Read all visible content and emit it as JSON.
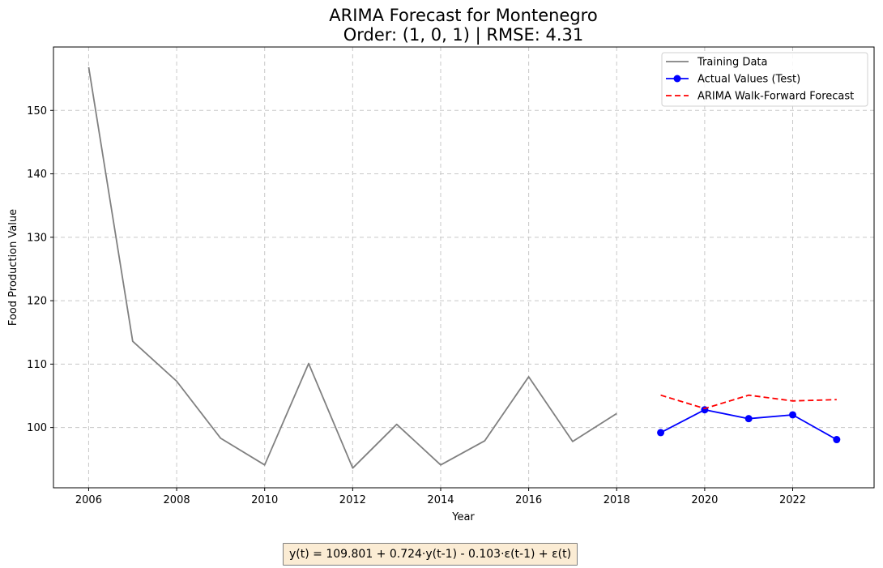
{
  "chart_data": {
    "type": "line",
    "title": "ARIMA Forecast for Montenegro",
    "subtitle": "Order: (1, 0, 1) | RMSE: 4.31",
    "xlabel": "Year",
    "ylabel": "Food Production Value",
    "xlim": [
      2005.2,
      2023.85
    ],
    "ylim": [
      90.5,
      160.0
    ],
    "xticks": [
      2006,
      2008,
      2010,
      2012,
      2014,
      2016,
      2018,
      2020,
      2022
    ],
    "yticks": [
      100,
      110,
      120,
      130,
      140,
      150
    ],
    "grid": true,
    "legend_position": "top-right",
    "series": [
      {
        "name": "Training Data",
        "color": "#808080",
        "style": "solid",
        "markers": false,
        "x": [
          2006,
          2007,
          2008,
          2009,
          2010,
          2011,
          2012,
          2013,
          2014,
          2015,
          2016,
          2017,
          2018
        ],
        "y": [
          156.8,
          113.6,
          107.3,
          98.3,
          94.1,
          110.1,
          93.6,
          100.5,
          94.1,
          97.9,
          108.0,
          97.8,
          102.2
        ]
      },
      {
        "name": "Actual Values (Test)",
        "color": "#0000ff",
        "style": "solid",
        "markers": true,
        "x": [
          2019,
          2020,
          2021,
          2022,
          2023
        ],
        "y": [
          99.2,
          102.8,
          101.4,
          102.0,
          98.1
        ]
      },
      {
        "name": "ARIMA Walk-Forward Forecast",
        "color": "#ff0000",
        "style": "dashed",
        "markers": false,
        "x": [
          2019,
          2020,
          2021,
          2022,
          2023
        ],
        "y": [
          105.1,
          103.0,
          105.1,
          104.2,
          104.4
        ]
      }
    ]
  },
  "equation": "y(t) = 109.801 + 0.724·y(t-1) - 0.103·ε(t-1) + ε(t)"
}
